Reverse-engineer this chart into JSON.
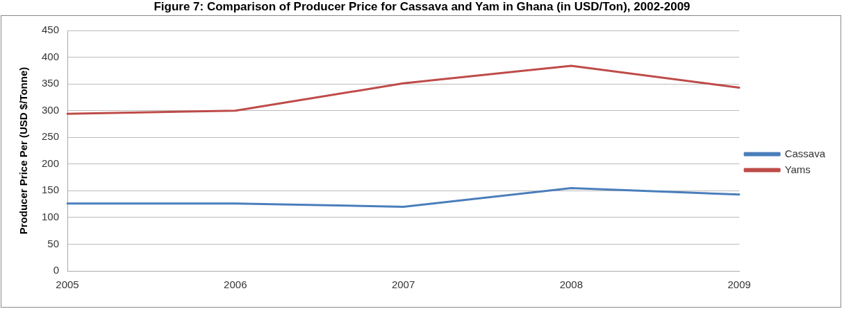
{
  "chart_data": {
    "type": "line",
    "title": "Figure 7: Comparison of Producer Price for Cassava and Yam in Ghana (in USD/Ton), 2002-2009",
    "ylabel": "Producer Price Per (USD $/Tonne)",
    "categories": [
      "2005",
      "2006",
      "2007",
      "2008",
      "2009"
    ],
    "series": [
      {
        "name": "Cassava",
        "color": "#4a7ebb",
        "values": [
          126,
          126,
          120,
          155,
          143
        ]
      },
      {
        "name": "Yams",
        "color": "#be4b48",
        "values": [
          294,
          300,
          351,
          384,
          343
        ]
      }
    ],
    "ylim": [
      0,
      450
    ],
    "yticks": [
      0,
      50,
      100,
      150,
      200,
      250,
      300,
      350,
      400,
      450
    ],
    "grid": "y",
    "legend": "right",
    "marker": "none"
  }
}
